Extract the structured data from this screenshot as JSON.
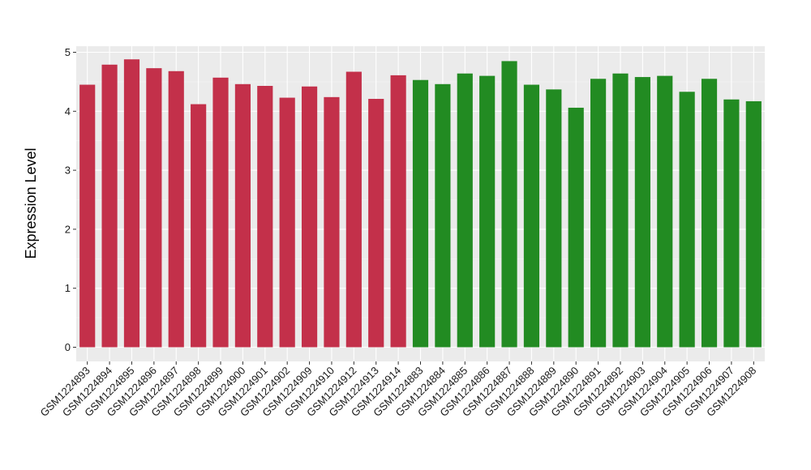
{
  "chart_data": {
    "type": "bar",
    "title": "",
    "xlabel": "",
    "ylabel": "Expression Level",
    "ylim": [
      0,
      5
    ],
    "yticks": [
      0,
      1,
      2,
      3,
      4,
      5
    ],
    "grid": true,
    "legend": "none",
    "categories": [
      "GSM1224893",
      "GSM1224894",
      "GSM1224895",
      "GSM1224896",
      "GSM1224897",
      "GSM1224898",
      "GSM1224899",
      "GSM1224900",
      "GSM1224901",
      "GSM1224902",
      "GSM1224909",
      "GSM1224910",
      "GSM1224912",
      "GSM1224913",
      "GSM1224914",
      "GSM1224883",
      "GSM1224884",
      "GSM1224885",
      "GSM1224886",
      "GSM1224887",
      "GSM1224888",
      "GSM1224889",
      "GSM1224890",
      "GSM1224891",
      "GSM1224892",
      "GSM1224903",
      "GSM1224904",
      "GSM1224905",
      "GSM1224906",
      "GSM1224907",
      "GSM1224908"
    ],
    "values": [
      4.45,
      4.79,
      4.88,
      4.73,
      4.68,
      4.12,
      4.57,
      4.46,
      4.43,
      4.23,
      4.42,
      4.24,
      4.67,
      4.21,
      4.61,
      4.53,
      4.46,
      4.64,
      4.6,
      4.85,
      4.45,
      4.37,
      4.06,
      4.55,
      4.64,
      4.58,
      4.6,
      4.33,
      4.55,
      4.2,
      4.17
    ],
    "bar_colors": [
      "#c3304a",
      "#c3304a",
      "#c3304a",
      "#c3304a",
      "#c3304a",
      "#c3304a",
      "#c3304a",
      "#c3304a",
      "#c3304a",
      "#c3304a",
      "#c3304a",
      "#c3304a",
      "#c3304a",
      "#c3304a",
      "#c3304a",
      "#228b22",
      "#228b22",
      "#228b22",
      "#228b22",
      "#228b22",
      "#228b22",
      "#228b22",
      "#228b22",
      "#228b22",
      "#228b22",
      "#228b22",
      "#228b22",
      "#228b22",
      "#228b22",
      "#228b22",
      "#228b22"
    ]
  }
}
